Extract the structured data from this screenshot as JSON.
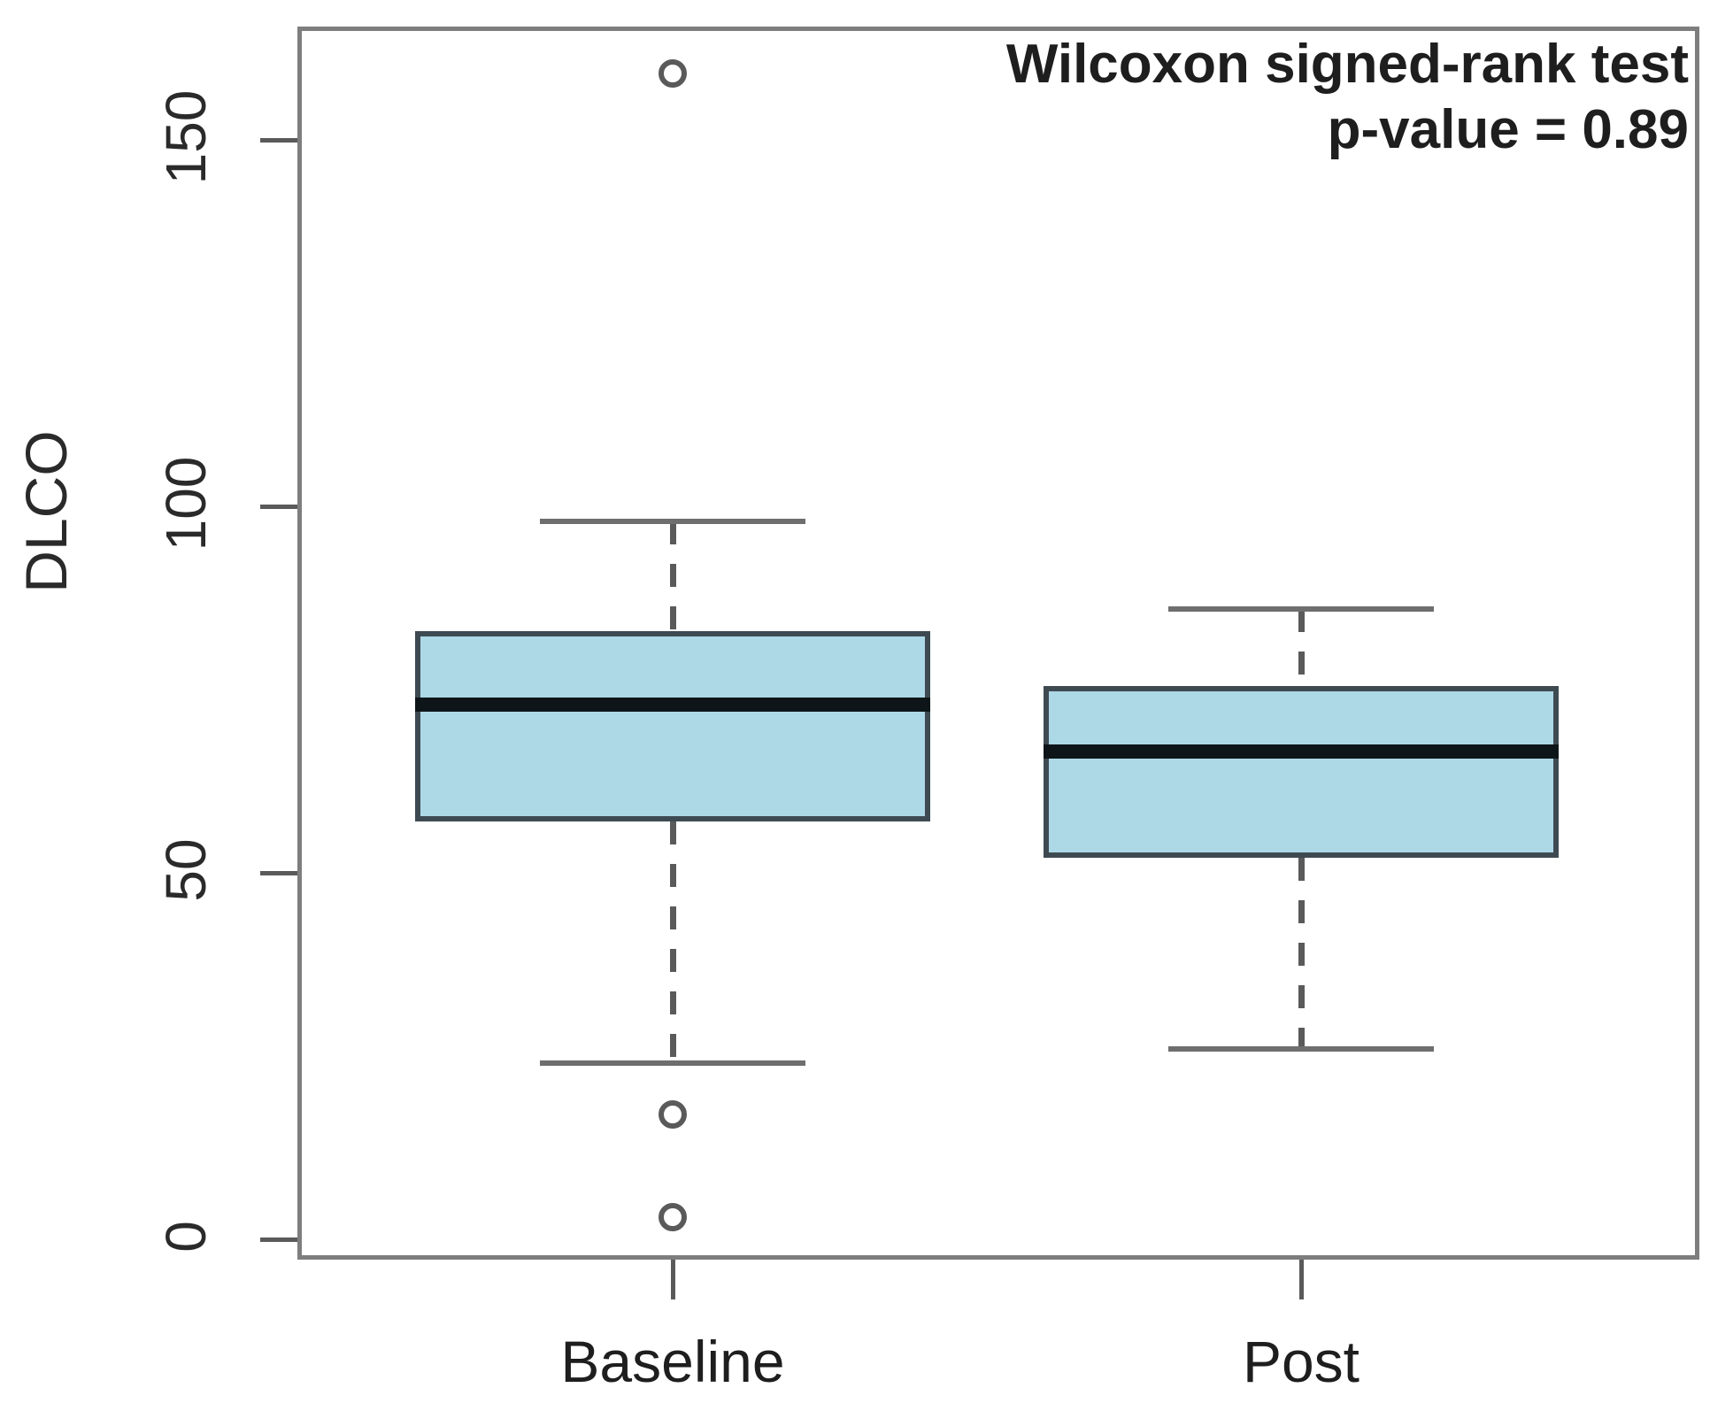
{
  "figure": {
    "annotation": {
      "line1": "Wilcoxon signed-rank test",
      "line2": "p-value = 0.89"
    },
    "y_axis": {
      "label": "DLCO",
      "tick_labels": [
        "0",
        "50",
        "100",
        "150"
      ]
    },
    "x_axis": {
      "categories": [
        "Baseline",
        "Post"
      ]
    }
  },
  "chart_data": {
    "type": "box",
    "title": "",
    "annotation": "Wilcoxon signed-rank test p-value = 0.89",
    "statistical_test": "Wilcoxon signed-rank test",
    "p_value": 0.89,
    "xlabel": "",
    "ylabel": "DLCO",
    "categories": [
      "Baseline",
      "Post"
    ],
    "yticks": [
      0,
      50,
      100,
      150
    ],
    "ylim": [
      0,
      168
    ],
    "grid": false,
    "legend_position": "none",
    "series": [
      {
        "name": "Baseline",
        "whisker_low": 24,
        "q1": 57,
        "median": 73,
        "q3": 83,
        "whisker_high": 98,
        "outliers": [
          159,
          17,
          3
        ]
      },
      {
        "name": "Post",
        "whisker_low": 26,
        "q1": 52,
        "median": 66.5,
        "q3": 75.5,
        "whisker_high": 86,
        "outliers": []
      }
    ],
    "colors": {
      "box_fill": "#ADD8E6",
      "box_border": "#3E4A51",
      "median_line": "#0E1519",
      "whisker": "#5A5A5A",
      "frame": "#7E7E7E",
      "text": "#1E1E1E"
    }
  }
}
